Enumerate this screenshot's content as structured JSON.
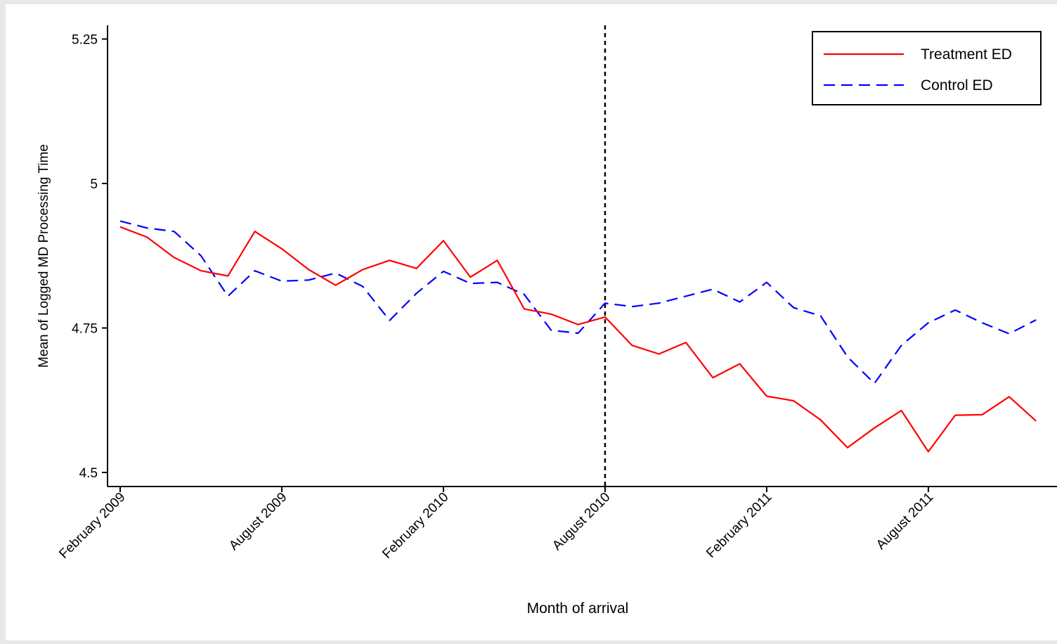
{
  "chart_data": {
    "type": "line",
    "xlabel": "Month of arrival",
    "ylabel": "Mean of Logged MD Processing Time",
    "ylim": [
      4.5,
      5.25
    ],
    "yticks": [
      4.5,
      4.75,
      5,
      5.25
    ],
    "ytick_labels": [
      "4.5",
      "4.75",
      "5",
      "5.25"
    ],
    "xlim": [
      "2009-02",
      "2011-11"
    ],
    "xticks": [
      "2009-02",
      "2009-08",
      "2010-02",
      "2010-08",
      "2011-02",
      "2011-08"
    ],
    "xtick_labels": [
      "February 2009",
      "August 2009",
      "February 2010",
      "August 2010",
      "February 2011",
      "August 2011"
    ],
    "reference_line": {
      "x": "2010-08",
      "style": "dashed",
      "color": "#000000"
    },
    "legend": {
      "position": "top-right",
      "boxed": true
    },
    "grid": false,
    "x": [
      "2009-02",
      "2009-03",
      "2009-04",
      "2009-05",
      "2009-06",
      "2009-07",
      "2009-08",
      "2009-09",
      "2009-10",
      "2009-11",
      "2009-12",
      "2010-01",
      "2010-02",
      "2010-03",
      "2010-04",
      "2010-05",
      "2010-06",
      "2010-07",
      "2010-08",
      "2010-09",
      "2010-10",
      "2010-11",
      "2010-12",
      "2011-01",
      "2011-02",
      "2011-03",
      "2011-04",
      "2011-05",
      "2011-06",
      "2011-07",
      "2011-08",
      "2011-09",
      "2011-10",
      "2011-11",
      "2011-12"
    ],
    "series": [
      {
        "name": "Treatment ED",
        "color": "#ff0000",
        "style": "solid",
        "values": [
          4.925,
          4.907,
          4.872,
          4.849,
          4.84,
          4.917,
          4.887,
          4.851,
          4.824,
          4.851,
          4.867,
          4.853,
          4.901,
          4.838,
          4.867,
          4.783,
          4.774,
          4.756,
          4.769,
          4.72,
          4.705,
          4.725,
          4.664,
          4.688,
          4.632,
          4.624,
          4.591,
          4.543,
          4.577,
          4.607,
          4.536,
          4.599,
          4.6,
          4.631,
          4.589
        ]
      },
      {
        "name": "Control ED",
        "color": "#0000ff",
        "style": "dashed",
        "values": [
          4.935,
          4.923,
          4.917,
          4.875,
          4.805,
          4.849,
          4.831,
          4.833,
          4.845,
          4.822,
          4.763,
          4.81,
          4.848,
          4.827,
          4.829,
          4.808,
          4.746,
          4.741,
          4.793,
          4.787,
          4.793,
          4.805,
          4.817,
          4.795,
          4.829,
          4.785,
          4.771,
          4.7,
          4.654,
          4.72,
          4.759,
          4.781,
          4.759,
          4.74,
          4.764
        ]
      }
    ]
  }
}
